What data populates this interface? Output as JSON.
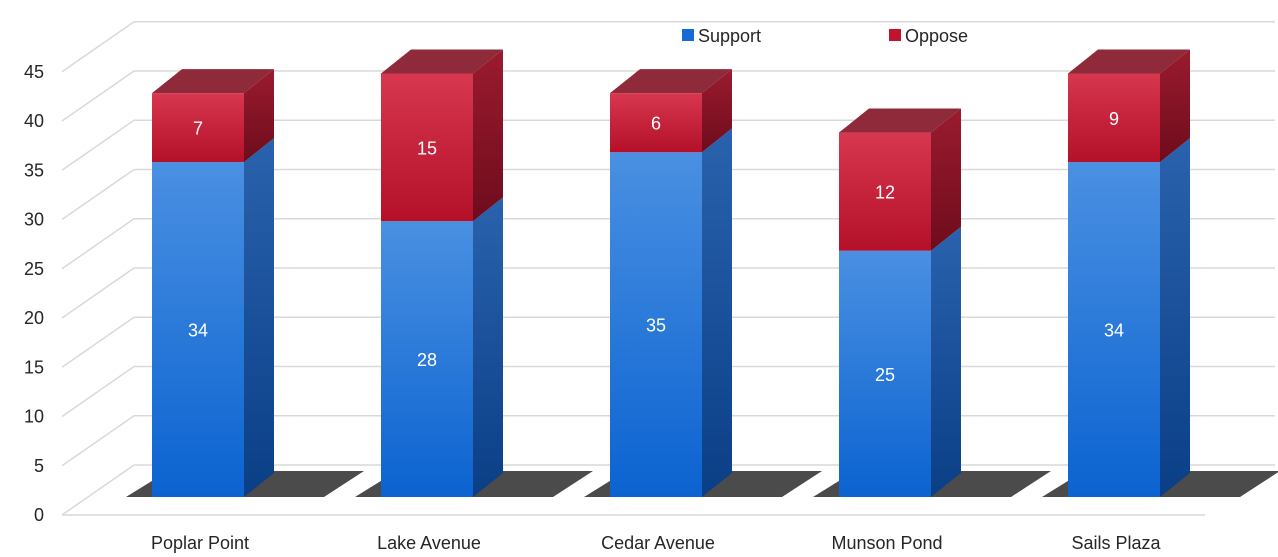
{
  "chart_data": {
    "type": "bar",
    "stacked": true,
    "three_d": true,
    "categories": [
      "Poplar Point",
      "Lake Avenue",
      "Cedar Avenue",
      "Munson Pond",
      "Sails Plaza"
    ],
    "series": [
      {
        "name": "Support",
        "values": [
          34,
          28,
          35,
          25,
          34
        ],
        "color": "#1f6fd1"
      },
      {
        "name": "Oppose",
        "values": [
          7,
          15,
          6,
          12,
          9
        ],
        "color": "#c0142c"
      }
    ],
    "yticks": [
      "0",
      "5",
      "10",
      "15",
      "20",
      "25",
      "30",
      "35",
      "40",
      "45"
    ],
    "ylim": [
      0,
      45
    ],
    "grid": true,
    "legend": "top-right"
  }
}
